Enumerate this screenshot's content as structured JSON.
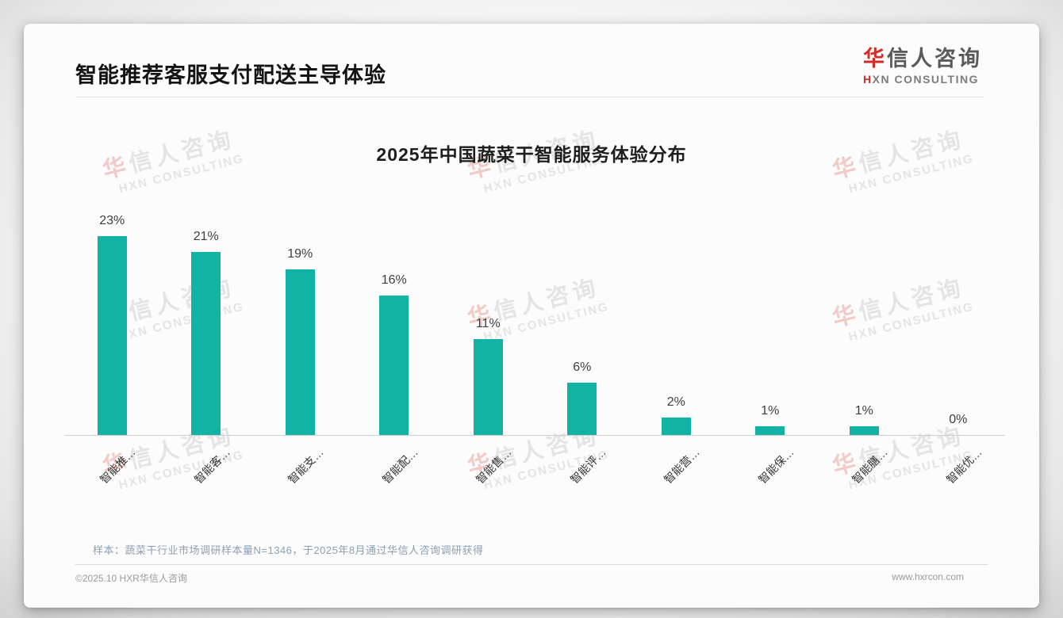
{
  "page": {
    "title": "智能推荐客服支付配送主导体验",
    "logo": {
      "cn_first": "华",
      "cn_rest": "信人咨询",
      "en_first": "H",
      "en_rest": "XN CONSULTING"
    },
    "watermark": {
      "cn_first": "华",
      "cn_rest": "信人咨询",
      "en": "HXN CONSULTING"
    },
    "footnote": "样本：蔬菜干行业市场调研样本量N=1346，于2025年8月通过华信人咨询调研获得",
    "footer_left": "©2025.10 HXR华信人咨询",
    "footer_right": "www.hxrcon.com"
  },
  "colors": {
    "bar": "#12b2a4",
    "accent_red": "#cf2e26",
    "axis_line": "#cfcfcf",
    "footnote_text": "#8c9fb1"
  },
  "chart_data": {
    "type": "bar",
    "title": "2025年中国蔬菜干智能服务体验分布",
    "categories": [
      "智能推…",
      "智能客…",
      "智能支…",
      "智能配…",
      "智能售…",
      "智能评…",
      "智能营…",
      "智能保…",
      "智能膳…",
      "智能优…"
    ],
    "values": [
      23,
      21,
      19,
      16,
      11,
      6,
      2,
      1,
      1,
      0
    ],
    "value_labels": [
      "23%",
      "21%",
      "19%",
      "16%",
      "11%",
      "6%",
      "2%",
      "1%",
      "1%",
      "0%"
    ],
    "xlabel": "",
    "ylabel": "",
    "ylim": [
      0,
      25
    ],
    "grid": false,
    "legend": "none",
    "bar_color": "#12b2a4",
    "value_label_position": "above-bar",
    "category_label_rotation_deg": -45
  }
}
